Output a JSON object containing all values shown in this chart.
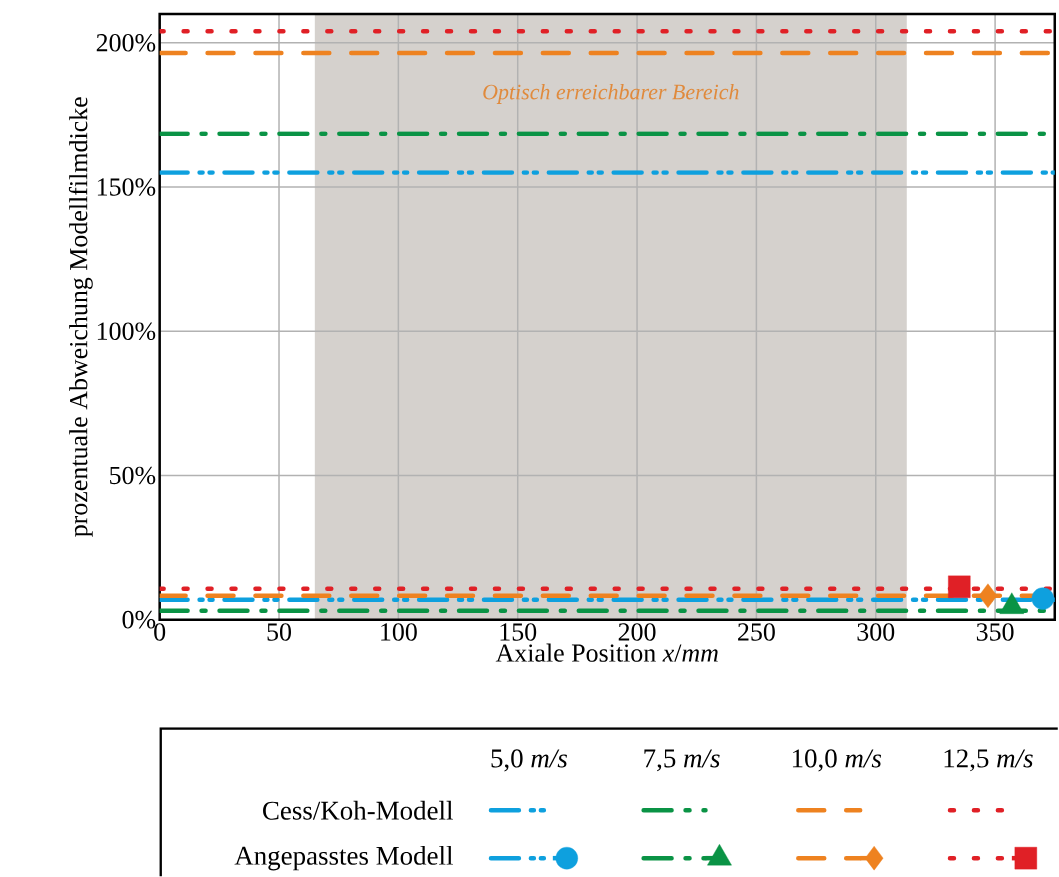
{
  "chart_data": {
    "type": "line",
    "xlabel": "Axiale Position *x*/*mm*",
    "ylabel": "prozentuale Abweichung Modellfilmdicke",
    "x": [
      0,
      375
    ],
    "series": [
      {
        "color": "#0ea0de",
        "values": [
          155,
          155
        ],
        "line_style": "dashdotdot"
      },
      {
        "color": "#0a9345",
        "values": [
          168.5,
          168.5
        ],
        "line_style": "dashdot"
      },
      {
        "color": "#ee8220",
        "values": [
          196.5,
          196.5
        ],
        "line_style": "dashed"
      },
      {
        "color": "#e02026",
        "values": [
          204,
          204
        ],
        "line_style": "dotted"
      },
      {
        "color": "#0ea0de",
        "values": [
          6.9,
          6.9
        ],
        "line_style": "dashdotdot"
      },
      {
        "color": "#0a9345",
        "values": [
          3.1,
          3.1
        ],
        "line_style": "dashdot"
      },
      {
        "color": "#ee8220",
        "values": [
          8.3,
          8.3
        ],
        "line_style": "dashed"
      },
      {
        "color": "#e02026",
        "values": [
          10.7,
          10.7
        ],
        "line_style": "dotted"
      },
      {
        "type": "scatter",
        "color": "#0ea0de",
        "x": [
          370
        ],
        "values": [
          7.3
        ],
        "marker": "circle"
      },
      {
        "type": "scatter",
        "color": "#0a9345",
        "x": [
          357
        ],
        "values": [
          4.5
        ],
        "marker": "triangle"
      },
      {
        "type": "scatter",
        "color": "#ee8220",
        "x": [
          347
        ],
        "values": [
          8.3
        ],
        "marker": "diamond"
      },
      {
        "type": "scatter",
        "color": "#e02026",
        "x": [
          335
        ],
        "values": [
          11.4
        ],
        "marker": "square"
      }
    ],
    "xlim": [
      0,
      375
    ],
    "ylim": [
      0,
      210
    ],
    "xticks": [
      0,
      50,
      100,
      150,
      200,
      250,
      300,
      350
    ],
    "yticks": [
      {
        "value": 0,
        "label": "0%"
      },
      {
        "value": 50,
        "label": "50%"
      },
      {
        "value": 100,
        "label": "100%"
      },
      {
        "value": 150,
        "label": "150%"
      },
      {
        "value": 200,
        "label": "200%"
      }
    ],
    "grid": true,
    "bands": [
      {
        "axis": "x",
        "from": 65,
        "to": 313,
        "label": "Optisch erreichbarer Bereich",
        "color": "#d5d1cd"
      }
    ],
    "annotations": [
      "5,0 *m/s*",
      "7,5 *m/s*",
      "10,0 *m/s*",
      "12,5 *m/s*",
      "Cess/Koh-Modell",
      "Angepasstes Modell"
    ]
  }
}
